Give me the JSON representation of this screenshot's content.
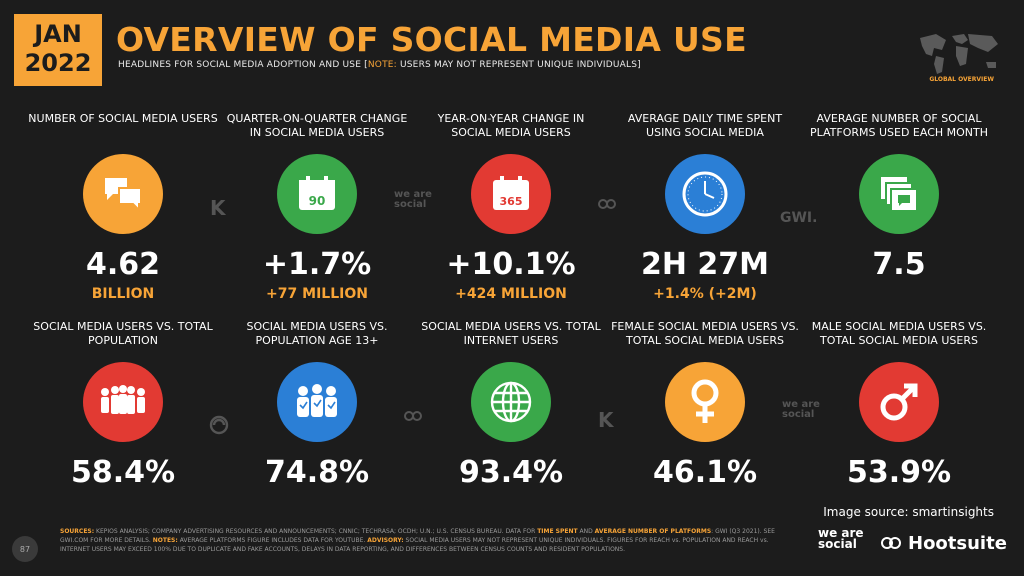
{
  "header": {
    "date_month": "JAN",
    "date_year": "2022",
    "title": "OVERVIEW OF SOCIAL MEDIA USE",
    "subtitle_main": "HEADLINES FOR SOCIAL MEDIA ADOPTION AND USE [",
    "subtitle_note": "NOTE:",
    "subtitle_rest": " USERS MAY NOT REPRESENT UNIQUE INDIVIDUALS]",
    "map_label": "GLOBAL OVERVIEW"
  },
  "colors": {
    "orange": "#f7a437",
    "green": "#3aa84a",
    "red": "#e23a33",
    "blue": "#2b7fd6"
  },
  "row1": [
    {
      "label": "NUMBER OF SOCIAL MEDIA USERS",
      "value": "4.62",
      "sub": "BILLION",
      "icon": "chat-bubbles-icon",
      "color": "#f7a437"
    },
    {
      "label": "QUARTER-ON-QUARTER CHANGE IN SOCIAL MEDIA USERS",
      "value": "+1.7%",
      "sub": "+77 MILLION",
      "icon": "calendar-90-icon",
      "color": "#3aa84a"
    },
    {
      "label": "YEAR-ON-YEAR CHANGE IN SOCIAL MEDIA USERS",
      "value": "+10.1%",
      "sub": "+424 MILLION",
      "icon": "calendar-365-icon",
      "color": "#e23a33"
    },
    {
      "label": "AVERAGE DAILY TIME SPENT USING SOCIAL MEDIA",
      "value": "2H 27M",
      "sub": "+1.4% (+2M)",
      "icon": "clock-icon",
      "color": "#2b7fd6"
    },
    {
      "label": "AVERAGE NUMBER OF SOCIAL PLATFORMS USED EACH MONTH",
      "value": "7.5",
      "sub": "",
      "icon": "stacked-windows-icon",
      "color": "#3aa84a"
    }
  ],
  "row2": [
    {
      "label": "SOCIAL MEDIA USERS vs. TOTAL POPULATION",
      "value": "58.4%",
      "icon": "crowd-icon",
      "color": "#e23a33"
    },
    {
      "label": "SOCIAL MEDIA USERS vs. POPULATION AGE 13+",
      "value": "74.8%",
      "icon": "group-people-icon",
      "color": "#2b7fd6"
    },
    {
      "label": "SOCIAL MEDIA USERS vs. TOTAL INTERNET USERS",
      "value": "93.4%",
      "icon": "globe-icon",
      "color": "#3aa84a"
    },
    {
      "label": "FEMALE SOCIAL MEDIA USERS vs. TOTAL SOCIAL MEDIA USERS",
      "value": "46.1%",
      "icon": "female-symbol-icon",
      "color": "#f7a437"
    },
    {
      "label": "MALE SOCIAL MEDIA USERS vs. TOTAL SOCIAL MEDIA USERS",
      "value": "53.9%",
      "icon": "male-symbol-icon",
      "color": "#e23a33"
    }
  ],
  "watermarks": {
    "kepios": "K",
    "wearesocial": "we are social",
    "gwi": "GWI."
  },
  "footer": {
    "page_number": "87",
    "sources_label": "SOURCES:",
    "sources_text": " KEPIOS ANALYSIS; COMPANY ADVERTISING RESOURCES AND ANNOUNCEMENTS; CNNIC; TECHRASA; OCDH; U.N.; U.S. CENSUS BUREAU. DATA FOR ",
    "time_spent": "TIME SPENT",
    "and": " AND ",
    "avg_num": "AVERAGE NUMBER OF PLATFORMS",
    "sources_text2": ": GWI (Q3 2021). SEE GWI.COM FOR MORE DETAILS. ",
    "notes_label": "NOTES:",
    "notes_text": " AVERAGE PLATFORMS FIGURE INCLUDES DATA FOR YOUTUBE. ",
    "advisory_label": "ADVISORY:",
    "advisory_text": " SOCIAL MEDIA USERS MAY NOT REPRESENT UNIQUE INDIVIDUALS. FIGURES FOR REACH vs. POPULATION AND REACH vs. INTERNET USERS MAY EXCEED 100% DUE TO DUPLICATE AND FAKE ACCOUNTS, DELAYS IN DATA REPORTING, AND DIFFERENCES BETWEEN CENSUS COUNTS AND RESIDENT POPULATIONS.",
    "image_source": "Image source: smartinsights",
    "brand1": "we are social",
    "brand2": "Hootsuite"
  }
}
